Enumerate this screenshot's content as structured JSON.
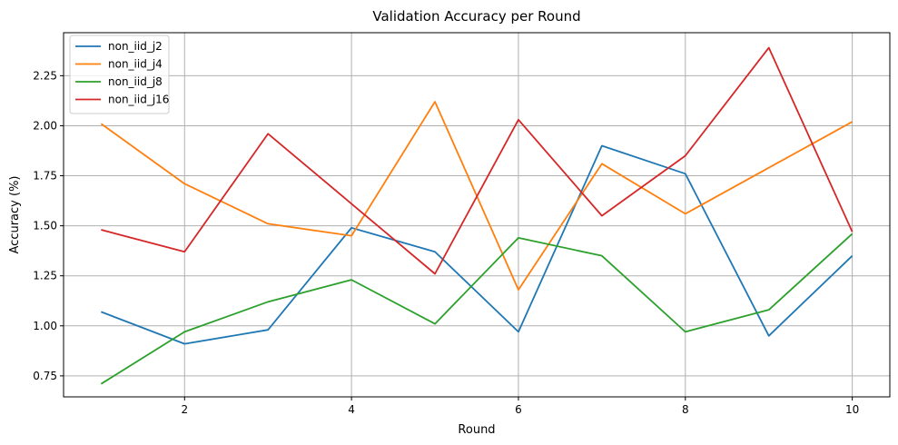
{
  "chart_data": {
    "type": "line",
    "title": "Validation Accuracy per Round",
    "xlabel": "Round",
    "ylabel": "Accuracy (%)",
    "xlim": [
      0.55,
      10.45
    ],
    "ylim": [
      0.645,
      2.465
    ],
    "xticks": [
      2,
      4,
      6,
      8,
      10
    ],
    "xtick_labels": [
      "2",
      "4",
      "6",
      "8",
      "10"
    ],
    "yticks": [
      0.75,
      1.0,
      1.25,
      1.5,
      1.75,
      2.0,
      2.25
    ],
    "ytick_labels": [
      "0.75",
      "1.00",
      "1.25",
      "1.50",
      "1.75",
      "2.00",
      "2.25"
    ],
    "grid": true,
    "legend_position": "top-left",
    "x": [
      1,
      2,
      3,
      4,
      5,
      6,
      7,
      8,
      9,
      10
    ],
    "series": [
      {
        "name": "non_iid_j2",
        "color": "#1f77b4",
        "values": [
          1.07,
          0.91,
          0.98,
          1.49,
          1.37,
          0.97,
          1.9,
          1.76,
          0.95,
          1.35
        ]
      },
      {
        "name": "non_iid_j4",
        "color": "#ff7f0e",
        "values": [
          2.01,
          1.71,
          1.51,
          1.45,
          2.12,
          1.18,
          1.81,
          1.56,
          1.79,
          2.02
        ]
      },
      {
        "name": "non_iid_j8",
        "color": "#2ca02c",
        "values": [
          0.71,
          0.97,
          1.12,
          1.23,
          1.01,
          1.44,
          1.35,
          0.97,
          1.08,
          1.46
        ]
      },
      {
        "name": "non_iid_j16",
        "color": "#d62728",
        "values": [
          1.48,
          1.37,
          1.96,
          1.61,
          1.26,
          2.03,
          1.55,
          1.85,
          2.39,
          1.47
        ]
      }
    ]
  }
}
